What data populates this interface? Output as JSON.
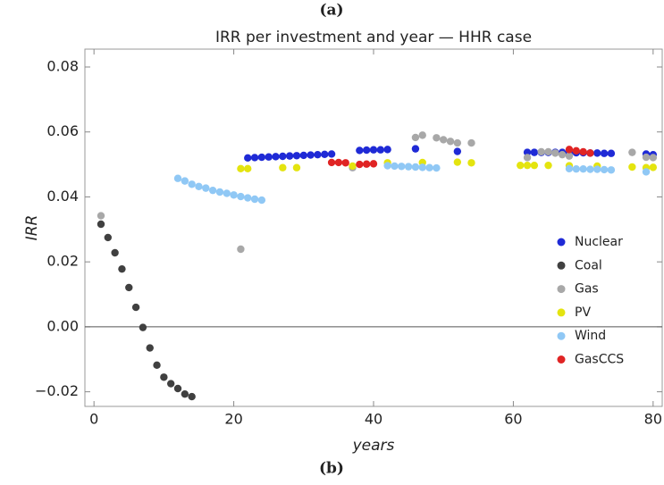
{
  "chart_data": {
    "type": "scatter",
    "panel_top": "(a)",
    "panel_bottom": "(b)",
    "title": "IRR per investment and year — HHR case",
    "x_label": "years",
    "y_label": "IRR",
    "xlim": [
      -1.3,
      81.3
    ],
    "ylim": [
      -0.0245,
      0.0855
    ],
    "xticks": [
      0,
      20,
      40,
      60,
      80
    ],
    "yticks": [
      {
        "value": -0.02,
        "label": "−0.02"
      },
      {
        "value": 0,
        "label": "0.00"
      },
      0.02,
      0.04,
      0.06,
      0.08
    ],
    "zero_line": true,
    "legend_position": "right",
    "series": [
      {
        "name": "Nuclear",
        "color": "#1f2ad6",
        "x": [
          22,
          23,
          24,
          25,
          26,
          27,
          28,
          29,
          30,
          31,
          32,
          33,
          34,
          38,
          39,
          40,
          41,
          42,
          46,
          52,
          62,
          63,
          64,
          65,
          66,
          67,
          68,
          69,
          70,
          71,
          72,
          73,
          74,
          79,
          80
        ],
        "values": [
          0.052,
          0.0521,
          0.0522,
          0.0523,
          0.0524,
          0.0525,
          0.0526,
          0.0527,
          0.0528,
          0.0529,
          0.053,
          0.0531,
          0.0532,
          0.0543,
          0.0544,
          0.0545,
          0.0545,
          0.0546,
          0.0548,
          0.054,
          0.0537,
          0.0537,
          0.0537,
          0.0537,
          0.0537,
          0.0537,
          0.0536,
          0.0536,
          0.0536,
          0.0535,
          0.0535,
          0.0534,
          0.0534,
          0.0532,
          0.053
        ]
      },
      {
        "name": "Coal",
        "color": "#404040",
        "x": [
          1,
          2,
          3,
          4,
          5,
          6,
          7,
          8,
          9,
          10,
          11,
          12,
          13,
          14
        ],
        "values": [
          0.0316,
          0.0275,
          0.0228,
          0.0178,
          0.0121,
          0.006,
          -0.0002,
          -0.0065,
          -0.0118,
          -0.0155,
          -0.0175,
          -0.019,
          -0.0207,
          -0.0215
        ]
      },
      {
        "name": "Gas",
        "color": "#a8a8a8",
        "x": [
          1,
          21,
          37,
          46,
          47,
          49,
          50,
          51,
          52,
          54,
          62,
          64,
          65,
          66,
          67,
          68,
          77,
          79,
          80
        ],
        "values": [
          0.0342,
          0.0239,
          0.049,
          0.0583,
          0.059,
          0.0582,
          0.0576,
          0.0571,
          0.0566,
          0.0566,
          0.0521,
          0.0539,
          0.0539,
          0.0535,
          0.053,
          0.0526,
          0.0537,
          0.0522,
          0.0521
        ]
      },
      {
        "name": "PV",
        "color": "#e4e40f",
        "x": [
          21,
          22,
          27,
          29,
          37,
          42,
          47,
          52,
          54,
          61,
          62,
          63,
          65,
          68,
          72,
          77,
          79,
          80
        ],
        "values": [
          0.0487,
          0.0487,
          0.049,
          0.049,
          0.0495,
          0.0505,
          0.0506,
          0.0507,
          0.0505,
          0.0497,
          0.0497,
          0.0497,
          0.0497,
          0.0496,
          0.0495,
          0.0492,
          0.049,
          0.0491
        ]
      },
      {
        "name": "Wind",
        "color": "#90c8f5",
        "x": [
          12,
          13,
          14,
          15,
          16,
          17,
          18,
          19,
          20,
          21,
          22,
          23,
          24,
          42,
          43,
          44,
          45,
          46,
          47,
          48,
          49,
          68,
          69,
          70,
          71,
          72,
          73,
          74,
          79
        ],
        "values": [
          0.0457,
          0.0449,
          0.0439,
          0.0432,
          0.0427,
          0.042,
          0.0415,
          0.0411,
          0.0406,
          0.0401,
          0.0397,
          0.0393,
          0.039,
          0.0496,
          0.0495,
          0.0494,
          0.0493,
          0.0492,
          0.0491,
          0.049,
          0.0489,
          0.0487,
          0.0486,
          0.0486,
          0.0485,
          0.0485,
          0.0484,
          0.0483,
          0.0477
        ]
      },
      {
        "name": "GasCCS",
        "color": "#e02424",
        "x": [
          34,
          35,
          36,
          38,
          39,
          40,
          68,
          69,
          70,
          71
        ],
        "values": [
          0.0506,
          0.0506,
          0.0505,
          0.05,
          0.0501,
          0.0502,
          0.0546,
          0.0542,
          0.0539,
          0.0535
        ]
      }
    ]
  }
}
